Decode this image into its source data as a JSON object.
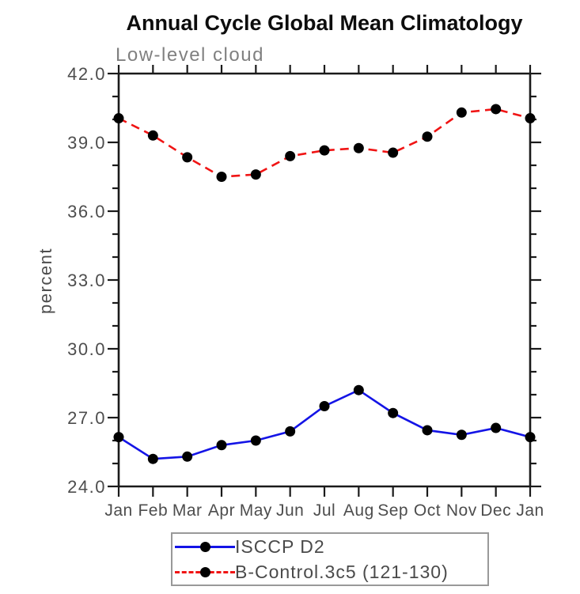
{
  "page": {
    "title": "Annual Cycle Global Mean Climatology",
    "subtitle": "Low-level cloud",
    "ylabel": "percent"
  },
  "legend": {
    "entries": [
      {
        "label": "ISCCP D2"
      },
      {
        "label": "B-Control.3c5 (121-130)"
      }
    ]
  },
  "colors": {
    "axis": "#1a1a1a",
    "tick_label": "#4d4d4d",
    "title": "#0d0d0d",
    "subtitle": "#808080",
    "marker": "#000000",
    "legend_border": "#999999"
  },
  "chart_data": {
    "type": "line",
    "title": "Annual Cycle Global Mean Climatology",
    "subtitle": "Low-level cloud",
    "xlabel": "",
    "ylabel": "percent",
    "x_labels": [
      "Jan",
      "Feb",
      "Mar",
      "Apr",
      "May",
      "Jun",
      "Jul",
      "Aug",
      "Sep",
      "Oct",
      "Nov",
      "Dec",
      "Jan"
    ],
    "ylim": [
      24.0,
      42.0
    ],
    "yticks": [
      24.0,
      27.0,
      30.0,
      33.0,
      36.0,
      39.0,
      42.0
    ],
    "ytick_minor_step": 1.0,
    "grid": false,
    "legend_position": "bottom",
    "series": [
      {
        "name": "ISCCP D2",
        "color": "#1414e6",
        "line_style": "solid",
        "marker": "filled-circle",
        "values": [
          26.15,
          25.2,
          25.3,
          25.8,
          26.0,
          26.4,
          27.5,
          28.2,
          27.2,
          26.45,
          26.25,
          26.55,
          26.15
        ]
      },
      {
        "name": "B-Control.3c5 (121-130)",
        "color": "#f01414",
        "line_style": "dashed",
        "marker": "filled-circle",
        "values": [
          40.05,
          39.3,
          38.35,
          37.5,
          37.6,
          38.4,
          38.65,
          38.75,
          38.55,
          39.25,
          40.3,
          40.45,
          40.05
        ]
      }
    ]
  }
}
